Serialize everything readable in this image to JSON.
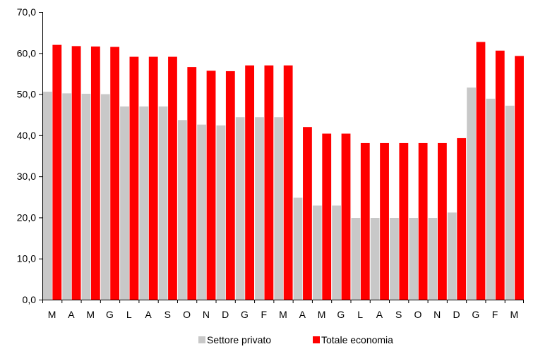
{
  "chart_data": {
    "type": "bar",
    "categories": [
      "M",
      "A",
      "M",
      "G",
      "L",
      "A",
      "S",
      "O",
      "N",
      "D",
      "G",
      "F",
      "M",
      "A",
      "M",
      "G",
      "L",
      "A",
      "S",
      "O",
      "N",
      "D",
      "G",
      "F",
      "M"
    ],
    "series": [
      {
        "name": "Settore privato",
        "color": "#c8c8c8",
        "values": [
          50.6,
          50.2,
          50.1,
          50.0,
          47.0,
          47.0,
          47.0,
          43.7,
          42.6,
          42.4,
          44.4,
          44.4,
          44.4,
          24.8,
          22.9,
          22.9,
          19.9,
          19.9,
          19.9,
          19.9,
          19.9,
          21.2,
          51.6,
          48.9,
          47.2
        ]
      },
      {
        "name": "Totale economia",
        "color": "#ff0000",
        "values": [
          62.0,
          61.7,
          61.6,
          61.5,
          59.1,
          59.1,
          59.1,
          56.6,
          55.7,
          55.6,
          57.0,
          57.0,
          57.0,
          42.0,
          40.4,
          40.4,
          38.1,
          38.1,
          38.1,
          38.1,
          38.1,
          39.3,
          62.7,
          60.6,
          59.3
        ]
      }
    ],
    "yticks": [
      "0,0",
      "10,0",
      "20,0",
      "30,0",
      "40,0",
      "50,0",
      "60,0",
      "70,0"
    ],
    "ylim": [
      0,
      70
    ],
    "grid": false,
    "legend_position": "bottom-center"
  }
}
